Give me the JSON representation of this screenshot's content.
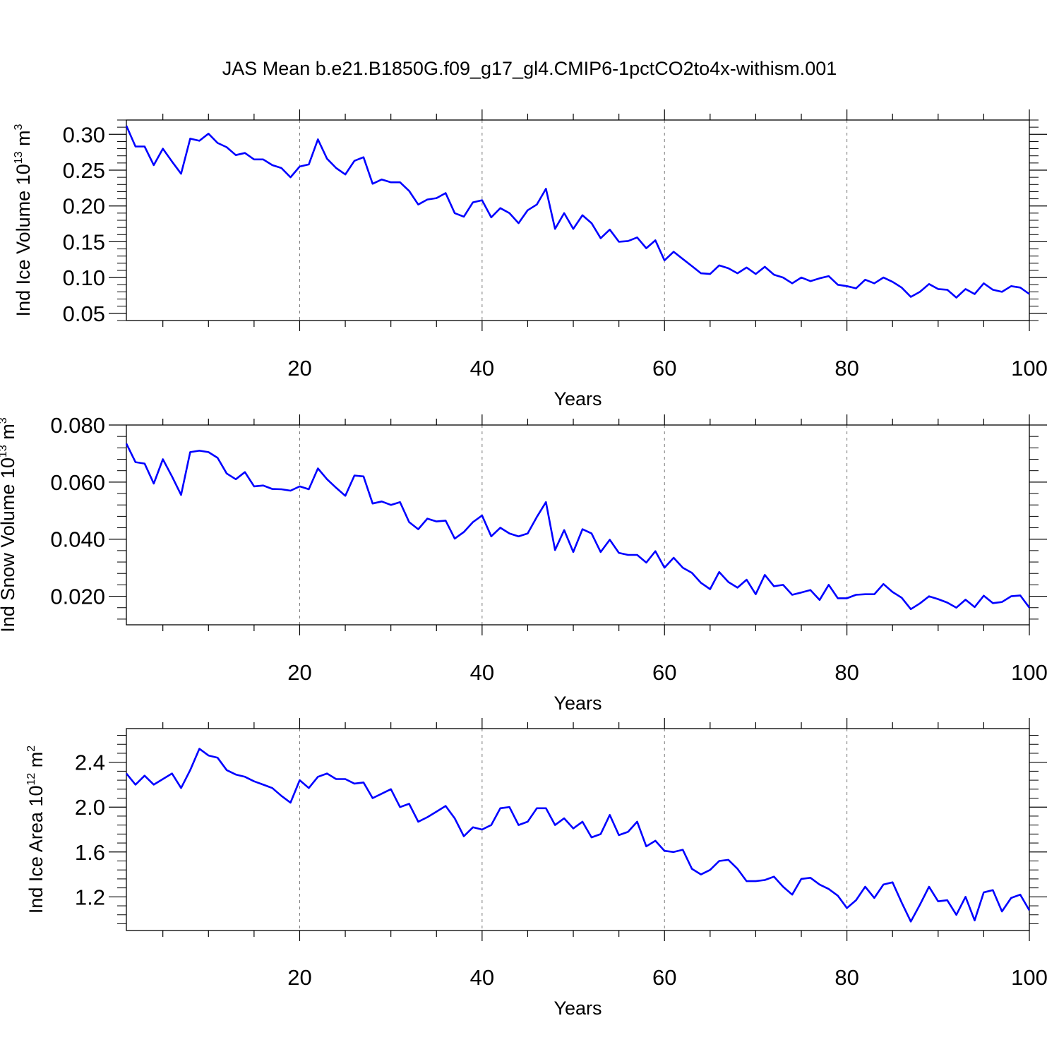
{
  "title": "JAS Mean b.e21.B1850G.f09_g17_gl4.CMIP6-1pctCO2to4x-withism.001",
  "colors": {
    "line": "#0000ff",
    "axes": "#000000",
    "grid": "#777777"
  },
  "chart_data": [
    {
      "type": "line",
      "xlabel": "Years",
      "ylabel": {
        "main": "Ind Ice Volume 10",
        "exp": "13",
        "unit": " m",
        "unit_exp": "3"
      },
      "xlim": [
        1,
        100
      ],
      "ylim": [
        0.04,
        0.32
      ],
      "xticks": [
        20,
        40,
        60,
        80,
        100
      ],
      "yticks": [
        0.05,
        0.1,
        0.15,
        0.2,
        0.25,
        0.3
      ],
      "ytick_labels": [
        "0.05",
        "0.10",
        "0.15",
        "0.20",
        "0.25",
        "0.30"
      ],
      "grid": "x-dashed",
      "series": [
        {
          "x_start": 1,
          "values": [
            0.312,
            0.283,
            0.283,
            0.257,
            0.28,
            0.262,
            0.245,
            0.294,
            0.291,
            0.301,
            0.288,
            0.282,
            0.271,
            0.274,
            0.265,
            0.265,
            0.257,
            0.253,
            0.24,
            0.255,
            0.258,
            0.293,
            0.266,
            0.253,
            0.244,
            0.263,
            0.268,
            0.231,
            0.237,
            0.233,
            0.233,
            0.221,
            0.202,
            0.209,
            0.211,
            0.218,
            0.19,
            0.185,
            0.205,
            0.208,
            0.184,
            0.197,
            0.19,
            0.176,
            0.194,
            0.202,
            0.224,
            0.168,
            0.19,
            0.168,
            0.187,
            0.176,
            0.155,
            0.167,
            0.15,
            0.151,
            0.156,
            0.141,
            0.152,
            0.124,
            0.136,
            0.126,
            0.116,
            0.106,
            0.105,
            0.117,
            0.113,
            0.106,
            0.114,
            0.105,
            0.115,
            0.104,
            0.1,
            0.092,
            0.1,
            0.095,
            0.099,
            0.102,
            0.09,
            0.088,
            0.085,
            0.097,
            0.092,
            0.1,
            0.094,
            0.086,
            0.073,
            0.08,
            0.091,
            0.084,
            0.083,
            0.072,
            0.084,
            0.077,
            0.092,
            0.083,
            0.08,
            0.088,
            0.086,
            0.077
          ]
        }
      ]
    },
    {
      "type": "line",
      "xlabel": "Years",
      "ylabel": {
        "main": "Ind Snow Volume 10",
        "exp": "13",
        "unit": " m",
        "unit_exp": "3"
      },
      "xlim": [
        1,
        100
      ],
      "ylim": [
        0.01,
        0.08
      ],
      "xticks": [
        20,
        40,
        60,
        80,
        100
      ],
      "yticks": [
        0.02,
        0.04,
        0.06,
        0.08
      ],
      "ytick_labels": [
        "0.020",
        "0.040",
        "0.060",
        "0.080"
      ],
      "grid": "x-dashed",
      "series": [
        {
          "x_start": 1,
          "values": [
            0.0735,
            0.067,
            0.0665,
            0.0595,
            0.068,
            0.062,
            0.0555,
            0.0705,
            0.071,
            0.0705,
            0.0685,
            0.063,
            0.061,
            0.0635,
            0.0585,
            0.0588,
            0.0576,
            0.0575,
            0.057,
            0.0585,
            0.0575,
            0.0648,
            0.061,
            0.058,
            0.0552,
            0.0623,
            0.062,
            0.0525,
            0.0532,
            0.052,
            0.053,
            0.046,
            0.0435,
            0.0472,
            0.0462,
            0.0465,
            0.0402,
            0.0425,
            0.046,
            0.0483,
            0.041,
            0.044,
            0.042,
            0.041,
            0.042,
            0.0478,
            0.053,
            0.0362,
            0.0432,
            0.0355,
            0.0435,
            0.042,
            0.0355,
            0.0398,
            0.0352,
            0.0345,
            0.0345,
            0.0318,
            0.0358,
            0.03,
            0.0335,
            0.03,
            0.0282,
            0.0247,
            0.0225,
            0.0285,
            0.025,
            0.023,
            0.0258,
            0.0207,
            0.0275,
            0.0235,
            0.024,
            0.0205,
            0.0213,
            0.0222,
            0.0187,
            0.024,
            0.0193,
            0.0193,
            0.0205,
            0.0207,
            0.0207,
            0.0243,
            0.0215,
            0.0195,
            0.0155,
            0.0175,
            0.02,
            0.019,
            0.0178,
            0.016,
            0.0188,
            0.0162,
            0.0202,
            0.0176,
            0.018,
            0.02,
            0.0203,
            0.016
          ]
        }
      ]
    },
    {
      "type": "line",
      "xlabel": "Years",
      "ylabel": {
        "main": "Ind Ice Area 10",
        "exp": "12",
        "unit": " m",
        "unit_exp": "2"
      },
      "xlim": [
        1,
        100
      ],
      "ylim": [
        0.9,
        2.7
      ],
      "xticks": [
        20,
        40,
        60,
        80,
        100
      ],
      "yticks": [
        1.2,
        1.6,
        2.0,
        2.4
      ],
      "ytick_labels": [
        "1.2",
        "1.6",
        "2.0",
        "2.4"
      ],
      "grid": "x-dashed",
      "series": [
        {
          "x_start": 1,
          "values": [
            2.3,
            2.2,
            2.28,
            2.2,
            2.25,
            2.3,
            2.17,
            2.33,
            2.52,
            2.46,
            2.44,
            2.33,
            2.29,
            2.27,
            2.23,
            2.2,
            2.17,
            2.1,
            2.04,
            2.24,
            2.17,
            2.27,
            2.3,
            2.25,
            2.25,
            2.21,
            2.22,
            2.08,
            2.12,
            2.16,
            2.0,
            2.03,
            1.87,
            1.91,
            1.96,
            2.01,
            1.9,
            1.74,
            1.82,
            1.8,
            1.84,
            1.99,
            2.0,
            1.84,
            1.87,
            1.99,
            1.99,
            1.84,
            1.9,
            1.81,
            1.87,
            1.73,
            1.76,
            1.93,
            1.75,
            1.78,
            1.87,
            1.65,
            1.7,
            1.61,
            1.6,
            1.62,
            1.45,
            1.4,
            1.44,
            1.52,
            1.53,
            1.45,
            1.34,
            1.34,
            1.35,
            1.38,
            1.29,
            1.22,
            1.36,
            1.37,
            1.31,
            1.27,
            1.21,
            1.1,
            1.17,
            1.29,
            1.19,
            1.31,
            1.33,
            1.15,
            0.98,
            1.13,
            1.29,
            1.16,
            1.17,
            1.04,
            1.2,
            0.99,
            1.24,
            1.26,
            1.07,
            1.19,
            1.22,
            1.08
          ]
        }
      ]
    }
  ]
}
